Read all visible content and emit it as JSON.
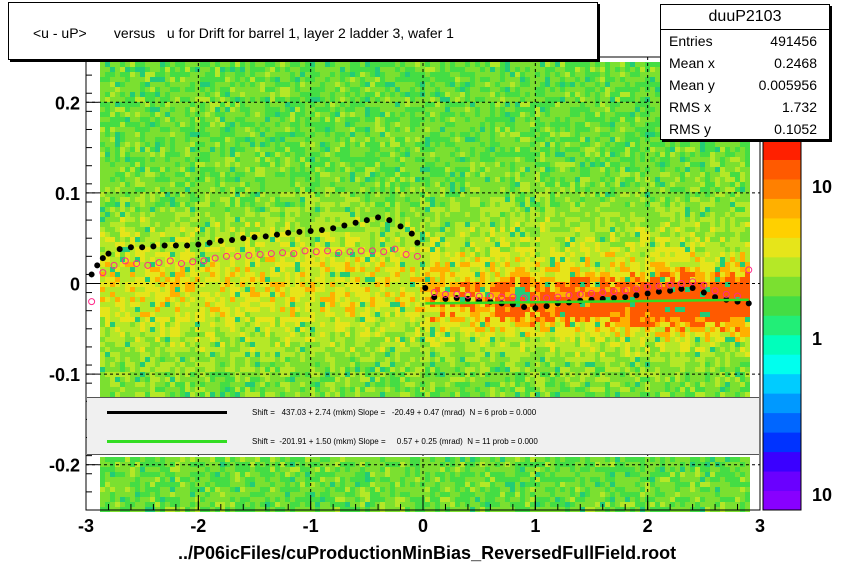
{
  "title": "<u - uP>       versus   u for Drift for barrel 1, layer 2 ladder 3, wafer 1",
  "x_axis_title": "../P06icFiles/cuProductionMinBias_ReversedFullField.root",
  "stats": {
    "name": "duuP2103",
    "rows": [
      {
        "key": "Entries",
        "value": "491456"
      },
      {
        "key": "Mean x",
        "value": "0.2468"
      },
      {
        "key": "Mean y",
        "value": "0.005956"
      },
      {
        "key": "RMS x",
        "value": "1.732"
      },
      {
        "key": "RMS y",
        "value": "0.1052"
      }
    ]
  },
  "fit_legend": [
    {
      "color": "#000000",
      "text": "Shift =   437.03 + 2.74 (mkm) Slope =   -20.49 + 0.47 (mrad)  N = 6 prob = 0.000"
    },
    {
      "color": "#33dd22",
      "text": "Shift =  -201.91 + 1.50 (mkm) Slope =     0.57 + 0.25 (mrad)  N = 11 prob = 0.000"
    }
  ],
  "colors": {
    "profile_black": "#000000",
    "profile_open": "#ff2a8a",
    "fit_green": "#33dd22"
  },
  "chart_data": {
    "type": "heatmap",
    "xlim": [
      -3,
      3
    ],
    "ylim": [
      -0.25,
      0.25
    ],
    "x_ticks": [
      "-3",
      "-2",
      "-1",
      "0",
      "1",
      "2",
      "3"
    ],
    "y_ticks": [
      "-0.2",
      "-0.1",
      "0",
      "0.1",
      "0.2"
    ],
    "y_tick_values": [
      -0.2,
      -0.1,
      0,
      0.1,
      0.2
    ],
    "x_tick_values": [
      -3,
      -2,
      -1,
      0,
      1,
      2,
      3
    ],
    "grid": true,
    "palette_labels": [
      "10",
      "1",
      "10"
    ],
    "profile_mean": {
      "x": [
        -2.95,
        -2.9,
        -2.85,
        -2.8,
        -2.7,
        -2.6,
        -2.5,
        -2.4,
        -2.3,
        -2.2,
        -2.1,
        -2.0,
        -1.9,
        -1.8,
        -1.7,
        -1.6,
        -1.5,
        -1.4,
        -1.3,
        -1.2,
        -1.1,
        -1.0,
        -0.9,
        -0.8,
        -0.7,
        -0.6,
        -0.5,
        -0.4,
        -0.3,
        -0.2,
        -0.1,
        -0.05,
        0.02,
        0.1,
        0.2,
        0.3,
        0.4,
        0.5,
        0.6,
        0.7,
        0.8,
        0.9,
        1.0,
        1.1,
        1.2,
        1.3,
        1.4,
        1.5,
        1.6,
        1.7,
        1.8,
        1.9,
        2.0,
        2.1,
        2.2,
        2.3,
        2.4,
        2.5,
        2.6,
        2.7,
        2.8,
        2.9
      ],
      "y": [
        0.01,
        0.02,
        0.028,
        0.033,
        0.038,
        0.04,
        0.04,
        0.041,
        0.042,
        0.042,
        0.042,
        0.043,
        0.045,
        0.047,
        0.048,
        0.05,
        0.051,
        0.052,
        0.054,
        0.056,
        0.057,
        0.058,
        0.059,
        0.061,
        0.064,
        0.067,
        0.07,
        0.073,
        0.07,
        0.063,
        0.055,
        0.045,
        -0.005,
        -0.015,
        -0.017,
        -0.016,
        -0.017,
        -0.019,
        -0.02,
        -0.022,
        -0.023,
        -0.026,
        -0.027,
        -0.025,
        -0.022,
        -0.021,
        -0.019,
        -0.018,
        -0.017,
        -0.016,
        -0.015,
        -0.013,
        -0.011,
        -0.009,
        -0.008,
        -0.006,
        -0.005,
        -0.01,
        -0.015,
        -0.018,
        -0.02,
        -0.022
      ]
    },
    "profile_open": {
      "x": [
        -2.95,
        -2.85,
        -2.75,
        -2.65,
        -2.55,
        -2.45,
        -2.35,
        -2.25,
        -2.15,
        -2.05,
        -1.95,
        -1.85,
        -1.75,
        -1.65,
        -1.55,
        -1.45,
        -1.35,
        -1.25,
        -1.15,
        -1.05,
        -0.95,
        -0.85,
        -0.75,
        -0.65,
        -0.55,
        -0.45,
        -0.35,
        -0.25,
        -0.15,
        -0.05,
        0.1,
        0.2,
        0.3,
        0.4,
        0.5,
        0.6,
        0.7,
        0.8,
        0.9,
        1.0,
        1.1,
        1.2,
        1.3,
        1.4,
        1.5,
        1.6,
        1.7,
        1.8,
        1.9,
        2.0,
        2.1,
        2.2,
        2.3,
        2.4,
        2.5,
        2.6,
        2.7,
        2.8,
        2.9
      ],
      "y": [
        -0.02,
        0.012,
        0.02,
        0.025,
        0.022,
        0.02,
        0.023,
        0.025,
        0.022,
        0.024,
        0.025,
        0.028,
        0.03,
        0.03,
        0.031,
        0.032,
        0.033,
        0.034,
        0.033,
        0.036,
        0.035,
        0.036,
        0.034,
        0.035,
        0.036,
        0.036,
        0.035,
        0.038,
        0.032,
        0.03,
        -0.01,
        -0.012,
        -0.012,
        -0.013,
        -0.014,
        -0.014,
        -0.015,
        -0.015,
        -0.016,
        -0.017,
        -0.016,
        -0.015,
        -0.013,
        -0.012,
        -0.011,
        -0.01,
        -0.009,
        -0.008,
        -0.006,
        -0.004,
        -0.003,
        -0.002,
        0.0,
        0.002,
        -0.002,
        -0.008,
        -0.012,
        -0.014,
        0.015
      ]
    },
    "fit_black": {
      "x": [
        -2.95,
        -0.05
      ],
      "y": [
        0.02,
        0.058
      ]
    },
    "fit_green": {
      "x": [
        0.02,
        2.9
      ],
      "y": [
        -0.022,
        -0.018
      ]
    }
  }
}
